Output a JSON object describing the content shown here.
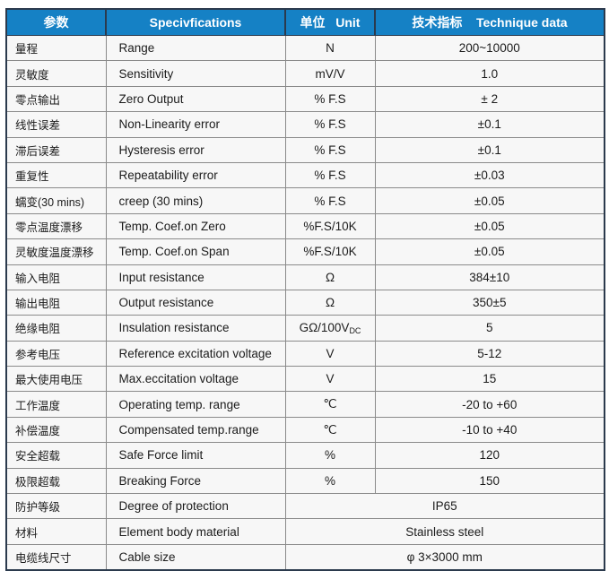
{
  "colors": {
    "header_bg": "#1581c5",
    "header_text": "#ffffff",
    "outer_border": "#2b3a4d",
    "grid": "#8a8a8a",
    "cell_bg": "#f7f7f7",
    "text": "#1b1b1b"
  },
  "table": {
    "headers": {
      "param": "参数",
      "spec": "Specivfications",
      "unit": "单位   Unit",
      "data": "技术指标    Technique data"
    },
    "rows": [
      {
        "param": "量程",
        "spec": "Range",
        "unit": "N",
        "value": "200~10000"
      },
      {
        "param": "灵敏度",
        "spec": "Sensitivity",
        "unit": "mV/V",
        "value": "1.0"
      },
      {
        "param": "零点输出",
        "spec": "Zero Output",
        "unit": "% F.S",
        "value": "± 2"
      },
      {
        "param": "线性误差",
        "spec": "Non-Linearity error",
        "unit": "% F.S",
        "value": "±0.1"
      },
      {
        "param": "滞后误差",
        "spec": "Hysteresis error",
        "unit": "% F.S",
        "value": "±0.1"
      },
      {
        "param": "重复性",
        "spec": "Repeatability error",
        "unit": "% F.S",
        "value": "±0.03"
      },
      {
        "param": "蠕变(30 mins)",
        "spec": "creep (30 mins)",
        "unit": "% F.S",
        "value": "±0.05"
      },
      {
        "param": "零点温度漂移",
        "spec": "Temp. Coef.on Zero",
        "unit": "%F.S/10K",
        "value": "±0.05"
      },
      {
        "param": "灵敏度温度漂移",
        "spec": "Temp. Coef.on Span",
        "unit": "%F.S/10K",
        "value": "±0.05"
      },
      {
        "param": "输入电阻",
        "spec": "Input resistance",
        "unit": "Ω",
        "value": "384±10"
      },
      {
        "param": "输出电阻",
        "spec": "Output resistance",
        "unit": "Ω",
        "value": "350±5"
      },
      {
        "param": "绝缘电阻",
        "spec": "Insulation resistance",
        "unit": "GΩ/100V",
        "unit_sub": "DC",
        "value": "5"
      },
      {
        "param": "参考电压",
        "spec": "Reference excitation voltage",
        "unit": "V",
        "value": "5-12"
      },
      {
        "param": "最大使用电压",
        "spec": "Max.eccitation voltage",
        "unit": "V",
        "value": "15"
      },
      {
        "param": "工作温度",
        "spec": "Operating temp. range",
        "unit": "℃",
        "value": "-20 to +60"
      },
      {
        "param": "补偿温度",
        "spec": "Compensated temp.range",
        "unit": "℃",
        "value": "-10 to +40"
      },
      {
        "param": "安全超载",
        "spec": "Safe Force limit",
        "unit": "%",
        "value": "120"
      },
      {
        "param": "极限超载",
        "spec": "Breaking Force",
        "unit": "%",
        "value": "150"
      },
      {
        "param": "防护等级",
        "spec": "Degree of protection",
        "merged": true,
        "value": "IP65"
      },
      {
        "param": "材料",
        "spec": "Element body material",
        "merged": true,
        "value": "Stainless steel"
      },
      {
        "param": "电缆线尺寸",
        "spec": "Cable size",
        "merged": true,
        "value": "φ 3×3000 mm"
      }
    ]
  }
}
